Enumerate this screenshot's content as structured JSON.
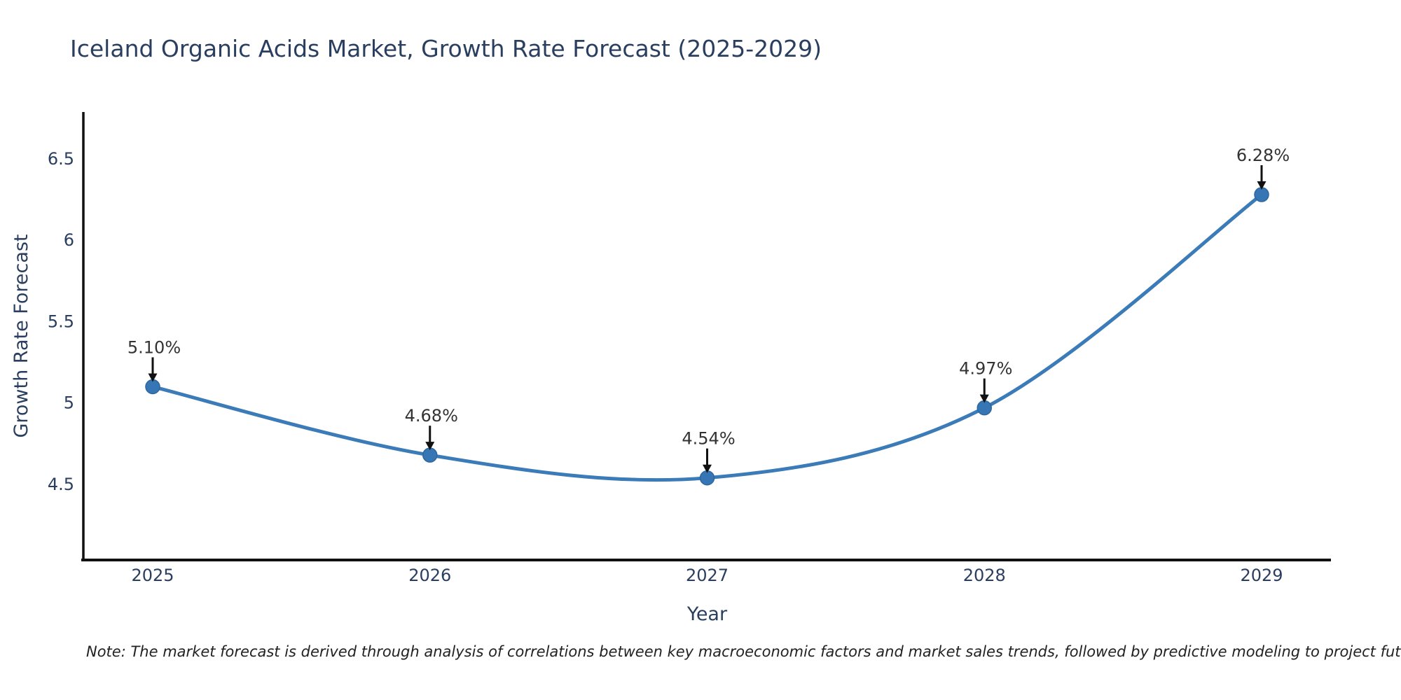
{
  "title": "Iceland Organic Acids Market, Growth Rate Forecast (2025-2029)",
  "note": "Note: The market forecast is derived through analysis of correlations between key macroeconomic factors and market sales trends, followed by predictive modeling to project future sales",
  "chart_data": {
    "type": "line",
    "title": "Iceland Organic Acids Market, Growth Rate Forecast (2025-2029)",
    "x": [
      2025,
      2026,
      2027,
      2028,
      2029
    ],
    "xtick_labels": [
      "2025",
      "2026",
      "2027",
      "2028",
      "2029"
    ],
    "values": [
      5.1,
      4.68,
      4.54,
      4.97,
      6.28
    ],
    "point_labels": [
      "5.10%",
      "4.68%",
      "4.54%",
      "4.97%",
      "6.28%"
    ],
    "series_name": "Growth Rate Forecast",
    "xlabel": "Year",
    "ylabel": "Growth Rate Forecast",
    "yticks": [
      4.5,
      5,
      5.5,
      6,
      6.5
    ],
    "ytick_labels": [
      "4.5",
      "5",
      "5.5",
      "6",
      "6.5"
    ],
    "ylim": [
      4.04,
      6.79
    ],
    "grid": false,
    "legend": "none",
    "line_shape": "spline",
    "marker": "circle",
    "annotation_arrows": true,
    "colors": {
      "line": "#3b7bb8",
      "marker": "#3676b4",
      "marker_edge": "#2e679f",
      "axis": "#111111",
      "arrow": "#111111",
      "text": "#2a3f5f",
      "annotation_text": "#333333",
      "note_text": "#222222",
      "background": "#ffffff"
    }
  }
}
